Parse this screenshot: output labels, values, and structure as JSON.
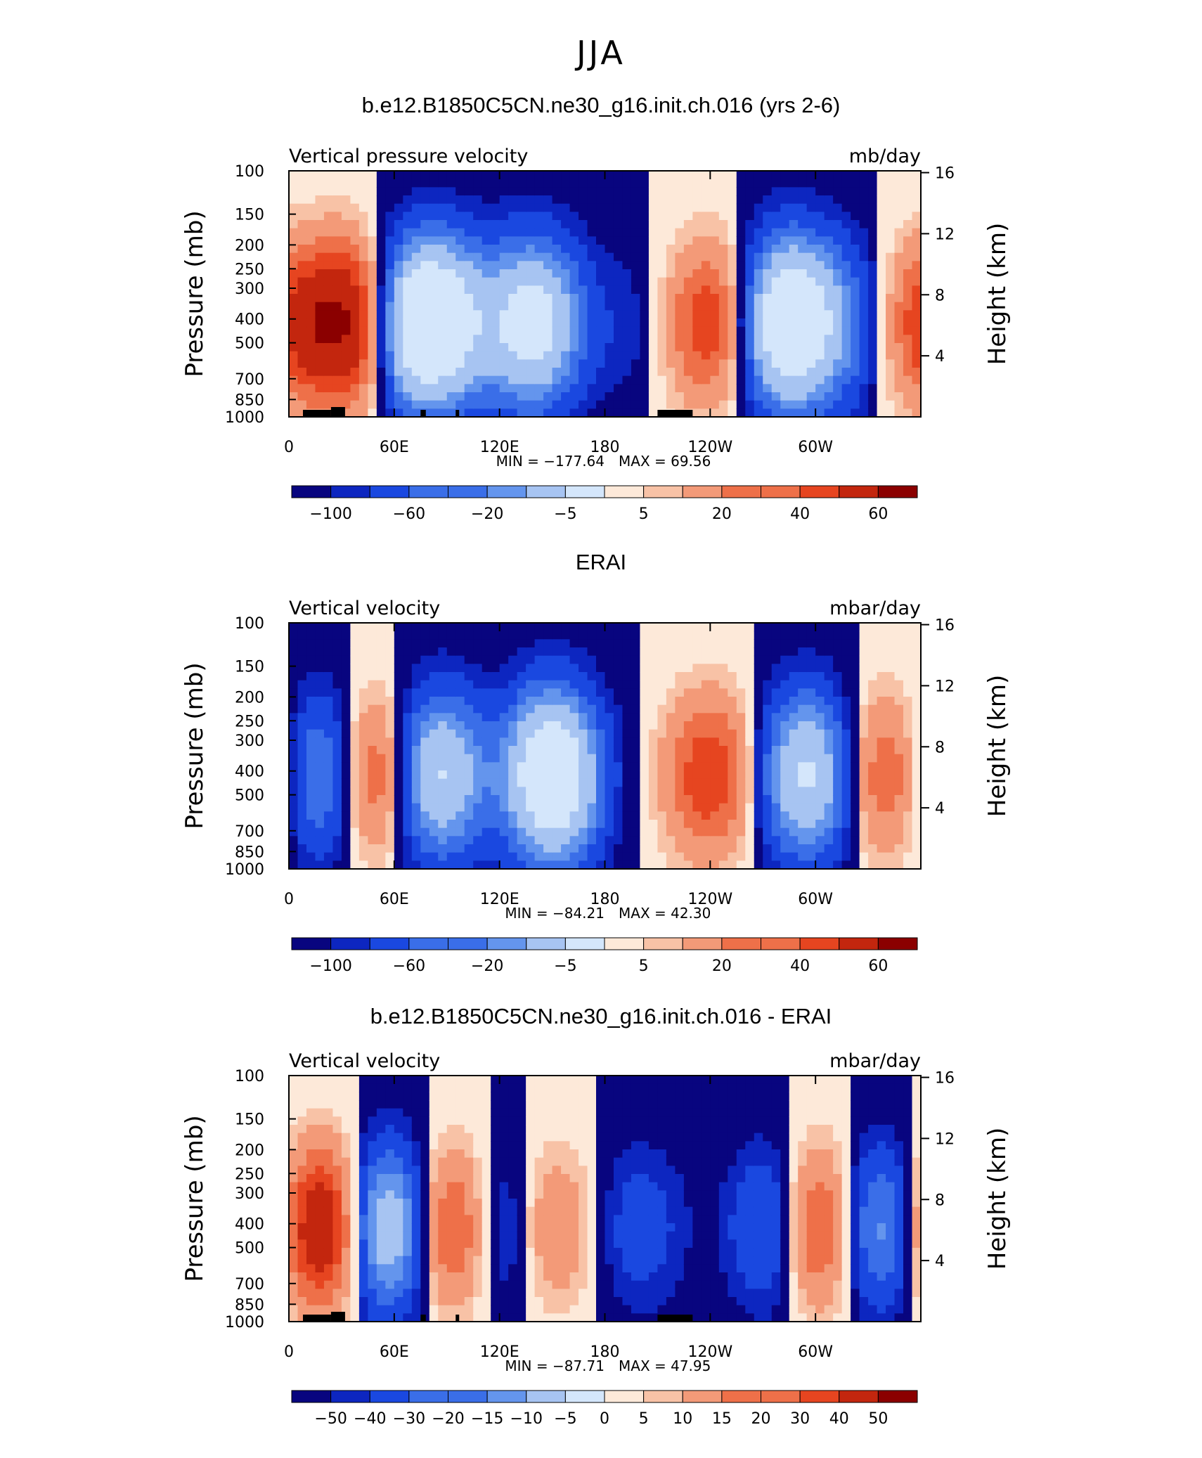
{
  "title": "JJA",
  "colors": {
    "negative_scale": [
      "#08057f",
      "#0d26c0",
      "#1a48e0",
      "#3a6ee8",
      "#6495ed",
      "#a7c4f2",
      "#d4e6fb"
    ],
    "positive_scale": [
      "#fde9d9",
      "#f8c2a6",
      "#f39a78",
      "#ee7049",
      "#e64520",
      "#c3260e",
      "#8b0000"
    ],
    "terrain": "#000000"
  },
  "chart_data": [
    {
      "type": "contour",
      "title": "b.e12.B1850C5CN.ne30_g16.init.ch.016 (yrs 2-6)",
      "variable": "Vertical pressure velocity",
      "units": "mb/day",
      "ylabel_left": "Pressure (mb)",
      "ylabel_right": "Height (km)",
      "y_ticks": [
        "100",
        "150",
        "200",
        "250",
        "300",
        "400",
        "500",
        "700",
        "850",
        "1000"
      ],
      "y_right_ticks": [
        "16",
        "12",
        "8",
        "4"
      ],
      "x_ticks": [
        "0",
        "60E",
        "120E",
        "180",
        "120W",
        "60W"
      ],
      "xlim": [
        0,
        360
      ],
      "ylim": [
        1000,
        100
      ],
      "y_scale": "log",
      "min_label": "MIN = −177.64",
      "max_label": "MAX =   69.56",
      "colorbar_labels": [
        "−100",
        "−60",
        "−20",
        "−5",
        "5",
        "20",
        "40",
        "60"
      ],
      "terrain_masked": true,
      "features": [
        {
          "lon": 15,
          "sign": 1,
          "magnitude": 20
        },
        {
          "lon": 38,
          "sign": 1,
          "magnitude": 30
        },
        {
          "lon": 75,
          "sign": -1,
          "magnitude": 60
        },
        {
          "lon": 100,
          "sign": -1,
          "magnitude": 20
        },
        {
          "lon": 140,
          "sign": -1,
          "magnitude": 45
        },
        {
          "lon": 195,
          "sign": -1,
          "magnitude": 5
        },
        {
          "lon": 240,
          "sign": 1,
          "magnitude": 25
        },
        {
          "lon": 285,
          "sign": -1,
          "magnitude": 60
        },
        {
          "lon": 320,
          "sign": -1,
          "magnitude": 15
        },
        {
          "lon": 352,
          "sign": 1,
          "magnitude": 12
        }
      ]
    },
    {
      "type": "contour",
      "title": "ERAI",
      "variable": "Vertical velocity",
      "units": "mbar/day",
      "ylabel_left": "Pressure (mb)",
      "ylabel_right": "Height (km)",
      "y_ticks": [
        "100",
        "150",
        "200",
        "250",
        "300",
        "400",
        "500",
        "700",
        "850",
        "1000"
      ],
      "y_right_ticks": [
        "16",
        "12",
        "8",
        "4"
      ],
      "x_ticks": [
        "0",
        "60E",
        "120E",
        "180",
        "120W",
        "60W"
      ],
      "xlim": [
        0,
        360
      ],
      "ylim": [
        1000,
        100
      ],
      "y_scale": "log",
      "min_label": "MIN = −84.21",
      "max_label": "MAX =   42.30",
      "colorbar_labels": [
        "−100",
        "−60",
        "−20",
        "−5",
        "5",
        "20",
        "40",
        "60"
      ],
      "terrain_masked": false,
      "features": [
        {
          "lon": 22,
          "sign": -1,
          "magnitude": 30
        },
        {
          "lon": 46,
          "sign": 1,
          "magnitude": 30
        },
        {
          "lon": 85,
          "sign": -1,
          "magnitude": 40
        },
        {
          "lon": 150,
          "sign": -1,
          "magnitude": 60
        },
        {
          "lon": 240,
          "sign": 1,
          "magnitude": 25
        },
        {
          "lon": 295,
          "sign": -1,
          "magnitude": 40
        },
        {
          "lon": 340,
          "sign": 1,
          "magnitude": 20
        }
      ]
    },
    {
      "type": "contour",
      "title": "b.e12.B1850C5CN.ne30_g16.init.ch.016 - ERAI",
      "variable": "Vertical velocity",
      "units": "mbar/day",
      "ylabel_left": "Pressure (mb)",
      "ylabel_right": "Height (km)",
      "y_ticks": [
        "100",
        "150",
        "200",
        "250",
        "300",
        "400",
        "500",
        "700",
        "850",
        "1000"
      ],
      "y_right_ticks": [
        "16",
        "12",
        "8",
        "4"
      ],
      "x_ticks": [
        "0",
        "60E",
        "120E",
        "180",
        "120W",
        "60W"
      ],
      "xlim": [
        0,
        360
      ],
      "ylim": [
        1000,
        100
      ],
      "y_scale": "log",
      "min_label": "MIN = −87.71",
      "max_label": "MAX =   47.95",
      "colorbar_labels": [
        "−50",
        "−40",
        "−30",
        "−20",
        "−15",
        "−10",
        "−5",
        "0",
        "5",
        "10",
        "15",
        "20",
        "30",
        "40",
        "50"
      ],
      "terrain_masked": true,
      "features": [
        {
          "lon": 20,
          "sign": 1,
          "magnitude": 40
        },
        {
          "lon": 55,
          "sign": -1,
          "magnitude": 40
        },
        {
          "lon": 95,
          "sign": 1,
          "magnitude": 30
        },
        {
          "lon": 118,
          "sign": -1,
          "magnitude": 20
        },
        {
          "lon": 148,
          "sign": 1,
          "magnitude": 15
        },
        {
          "lon": 200,
          "sign": -1,
          "magnitude": 10
        },
        {
          "lon": 282,
          "sign": -1,
          "magnitude": 30
        },
        {
          "lon": 298,
          "sign": 1,
          "magnitude": 40
        },
        {
          "lon": 335,
          "sign": -1,
          "magnitude": 25
        }
      ]
    }
  ]
}
